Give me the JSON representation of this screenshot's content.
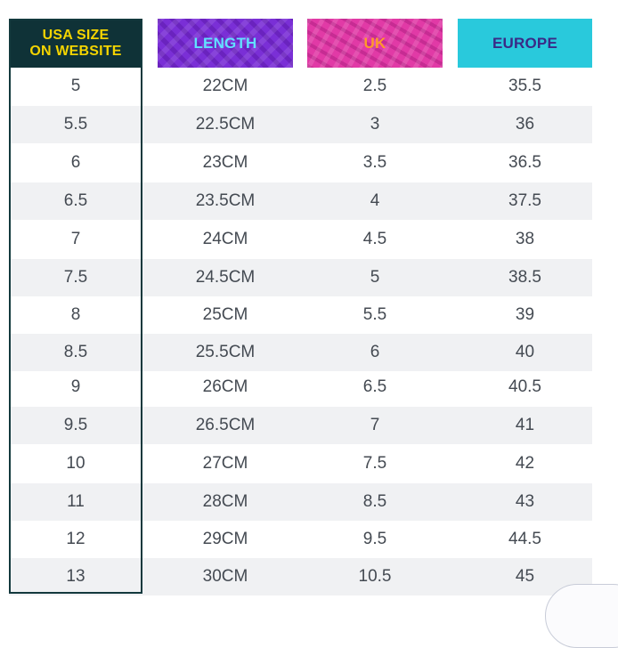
{
  "headers": {
    "usa": "USA SIZE\nON WEBSITE",
    "length": "LENGTH",
    "uk": "UK",
    "europe": "EUROPE"
  },
  "colors": {
    "usa_header_bg": "#0f3237",
    "usa_header_text": "#f4d400",
    "length_header_bg": "#7a2fd6",
    "length_header_text": "#62e0ff",
    "uk_header_bg": "#e13aa6",
    "uk_header_text": "#ff9a2a",
    "europe_header_bg": "#29c9dc",
    "europe_header_text": "#3a2a86",
    "row_band": "#f0f1f3",
    "cell_text": "#444a52"
  },
  "rows": [
    {
      "usa": "5",
      "length": "22CM",
      "uk": "2.5",
      "europe": "35.5"
    },
    {
      "usa": "5.5",
      "length": "22.5CM",
      "uk": "3",
      "europe": "36"
    },
    {
      "usa": "6",
      "length": "23CM",
      "uk": "3.5",
      "europe": "36.5"
    },
    {
      "usa": "6.5",
      "length": "23.5CM",
      "uk": "4",
      "europe": "37.5"
    },
    {
      "usa": "7",
      "length": "24CM",
      "uk": "4.5",
      "europe": "38"
    },
    {
      "usa": "7.5",
      "length": "24.5CM",
      "uk": "5",
      "europe": "38.5"
    },
    {
      "usa": "8",
      "length": "25CM",
      "uk": "5.5",
      "europe": "39"
    },
    {
      "usa": "8.5",
      "length": "25.5CM",
      "uk": "6",
      "europe": "40"
    },
    {
      "usa": "9",
      "length": "26CM",
      "uk": "6.5",
      "europe": "40.5"
    },
    {
      "usa": "9.5",
      "length": "26.5CM",
      "uk": "7",
      "europe": "41"
    },
    {
      "usa": "10",
      "length": "27CM",
      "uk": "7.5",
      "europe": "42"
    },
    {
      "usa": "11",
      "length": "28CM",
      "uk": "8.5",
      "europe": "43"
    },
    {
      "usa": "12",
      "length": "29CM",
      "uk": "9.5",
      "europe": "44.5"
    },
    {
      "usa": "13",
      "length": "30CM",
      "uk": "10.5",
      "europe": "45"
    }
  ]
}
